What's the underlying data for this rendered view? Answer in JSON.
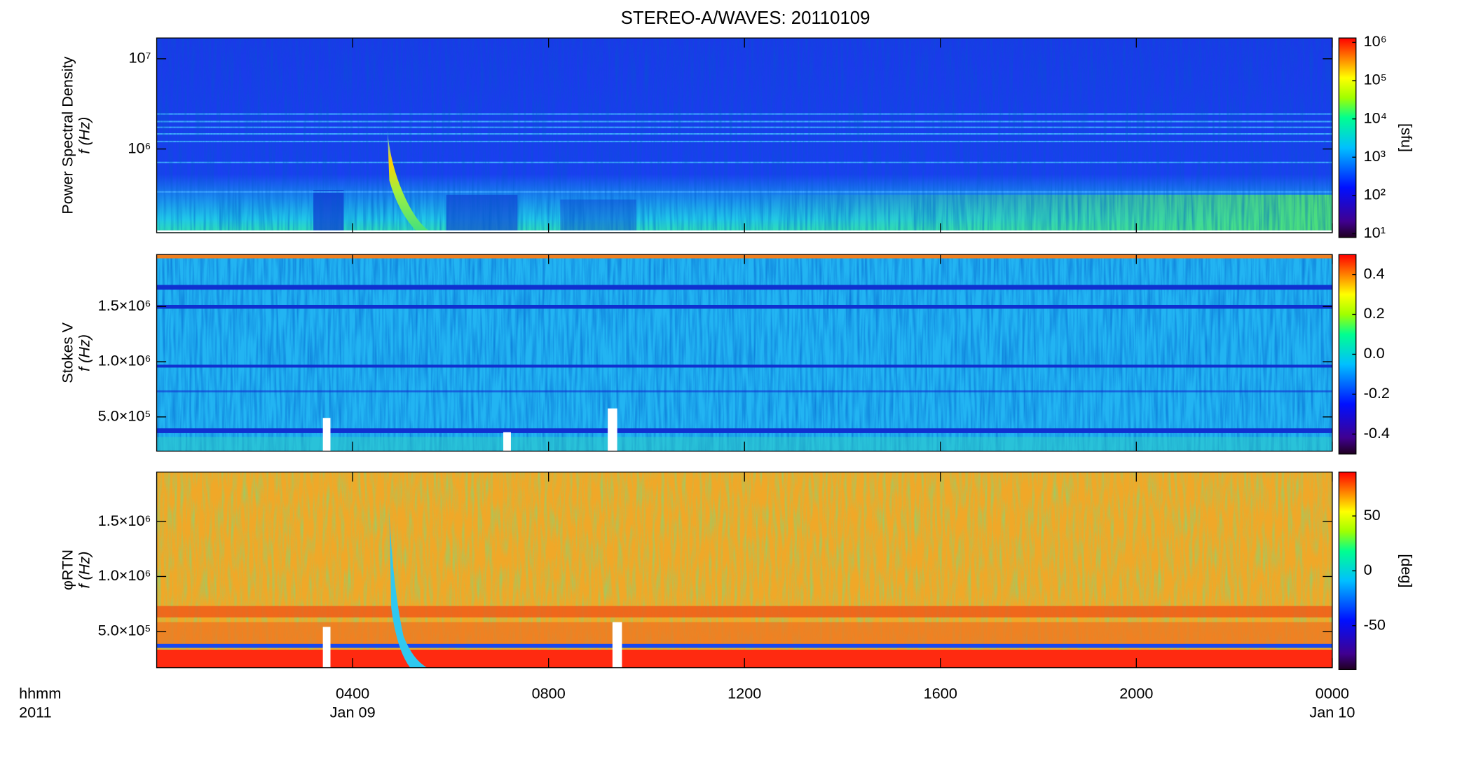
{
  "title": "STEREO-A/WAVES: 20110109",
  "x_axis": {
    "xlim": [
      0,
      24
    ],
    "xticks": [
      {
        "value": 4,
        "label": "0400"
      },
      {
        "value": 8,
        "label": "0800"
      },
      {
        "value": 12,
        "label": "1200"
      },
      {
        "value": 16,
        "label": "1600"
      },
      {
        "value": 20,
        "label": "2000"
      },
      {
        "value": 24,
        "label": "0000"
      }
    ],
    "dates": [
      {
        "value": 4,
        "label": "Jan 09"
      },
      {
        "value": 24,
        "label": "Jan 10"
      }
    ],
    "label": [
      "hhmm",
      "2011"
    ]
  },
  "chart_data": [
    {
      "type": "heatmap",
      "ylabel": [
        "Power Spectral Density",
        "f (Hz)"
      ],
      "ylog": true,
      "ylim": [
        118000,
        17000000
      ],
      "yticks": [
        {
          "value": 1000000,
          "label": "10⁶"
        },
        {
          "value": 10000000,
          "label": "10⁷"
        }
      ],
      "clog": true,
      "clim": [
        8,
        1300000
      ],
      "cticks": [
        {
          "value": 10,
          "label": "10¹"
        },
        {
          "value": 100,
          "label": "10²"
        },
        {
          "value": 1000,
          "label": "10³"
        },
        {
          "value": 10000,
          "label": "10⁴"
        },
        {
          "value": 100000,
          "label": "10⁵"
        },
        {
          "value": 1000000,
          "label": "10⁶"
        }
      ],
      "clabel": "[sfu]"
    },
    {
      "type": "heatmap",
      "ylabel": [
        "Stokes V",
        "f (Hz)"
      ],
      "ylog": false,
      "ylim": [
        190000,
        1970000
      ],
      "yticks": [
        {
          "value": 500000,
          "label": "5.0×10⁵"
        },
        {
          "value": 1000000,
          "label": "1.0×10⁶"
        },
        {
          "value": 1500000,
          "label": "1.5×10⁶"
        }
      ],
      "clog": false,
      "clim": [
        -0.5,
        0.5
      ],
      "cticks": [
        {
          "value": -0.4,
          "label": "-0.4"
        },
        {
          "value": -0.2,
          "label": "-0.2"
        },
        {
          "value": 0.0,
          "label": "0.0"
        },
        {
          "value": 0.2,
          "label": "0.2"
        },
        {
          "value": 0.4,
          "label": "0.4"
        }
      ]
    },
    {
      "type": "heatmap",
      "ylabel": [
        "φRTN",
        "f (Hz)"
      ],
      "ylog": false,
      "ylim": [
        170000,
        1950000
      ],
      "yticks": [
        {
          "value": 500000,
          "label": "5.0×10⁵"
        },
        {
          "value": 1000000,
          "label": "1.0×10⁶"
        },
        {
          "value": 1500000,
          "label": "1.5×10⁶"
        }
      ],
      "clog": false,
      "clim": [
        -90,
        90
      ],
      "cticks": [
        -50,
        0,
        50
      ],
      "clabel": "[deg]"
    }
  ]
}
